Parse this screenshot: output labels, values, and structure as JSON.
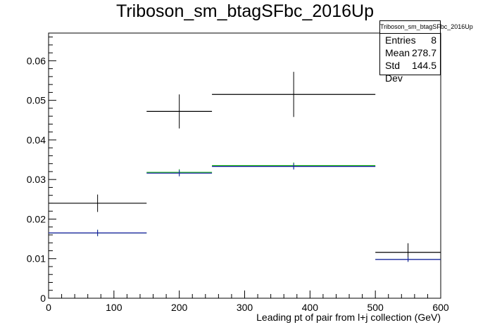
{
  "title": "Triboson_sm_btagSFbc_2016Up",
  "stats": {
    "title": "Triboson_sm_btagSFbc_2016Up",
    "rows": [
      {
        "label": "Entries",
        "value": "8"
      },
      {
        "label": "Mean",
        "value": "278.7"
      },
      {
        "label": "Std Dev",
        "value": "144.5"
      }
    ]
  },
  "chart_data": {
    "type": "histogram",
    "title": "Triboson_sm_btagSFbc_2016Up",
    "xlabel": "Leading pt of pair from l+j collection (GeV)",
    "ylabel": "",
    "xlim": [
      0,
      600
    ],
    "ylim": [
      0,
      0.067
    ],
    "xticks": [
      0,
      100,
      200,
      300,
      400,
      500,
      600
    ],
    "yticks": [
      0,
      0.01,
      0.02,
      0.03,
      0.04,
      0.05,
      0.06
    ],
    "ytick_labels": [
      "0",
      "0.01",
      "0.02",
      "0.03",
      "0.04",
      "0.05",
      "0.06"
    ],
    "bin_edges": [
      0,
      150,
      250,
      500,
      600
    ],
    "series": [
      {
        "color": "#000000",
        "values": [
          0.024,
          0.0472,
          0.0515,
          0.0116
        ],
        "errors": [
          0.0022,
          0.0043,
          0.0057,
          0.0023
        ]
      },
      {
        "color": "#00aa00",
        "values": [
          0.0165,
          0.0318,
          0.0335,
          0.0098
        ],
        "errors": [
          0.0008,
          0.0008,
          0.0008,
          0.0006
        ]
      },
      {
        "color": "#1a1aaa",
        "values": [
          0.0165,
          0.0316,
          0.0333,
          0.0098
        ],
        "errors": [
          0.0008,
          0.0008,
          0.0008,
          0.0006
        ]
      }
    ]
  }
}
